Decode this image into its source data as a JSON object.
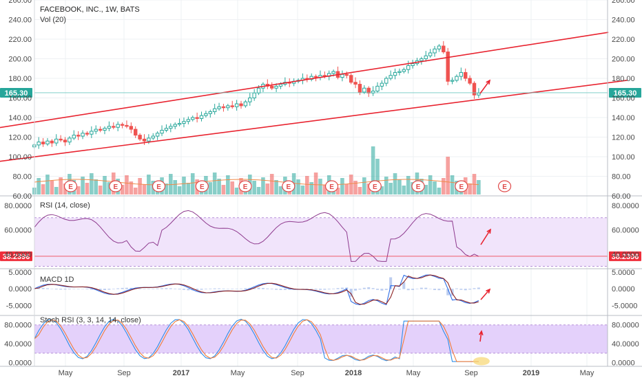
{
  "header": {
    "title": "FACEBOOK, INC., 1W, BATS",
    "volume_label": "Vol (20)"
  },
  "colors": {
    "up": "#26a69a",
    "down": "#ef5350",
    "channel": "#e8232f",
    "rsi_line": "#8e3a8e",
    "rsi_band": "#f1e4fb",
    "stoch_band": "#e4d1fb",
    "macd_line": "#2f6ee6",
    "signal_line": "#8a1d1d",
    "k_line": "#2f8ee6",
    "d_line": "#f07c3a",
    "badge_green": "#26a69a",
    "badge_red": "#ef2d3a",
    "earnings": "#e04a4a",
    "grid": "#eef0f3"
  },
  "earnings_marker": "E",
  "chart_data": [
    {
      "type": "candlestick",
      "title": "FACEBOOK, INC., 1W, BATS",
      "ylim": [
        60,
        260
      ],
      "y_ticks": [
        "260.00",
        "240.00",
        "220.00",
        "200.00",
        "180.00",
        "160.00",
        "140.00",
        "120.00",
        "100.00",
        "80.00",
        "60.00"
      ],
      "x_ticks": [
        "May",
        "Sep",
        "2017",
        "May",
        "Sep",
        "2018",
        "May",
        "Sep",
        "2019",
        "May"
      ],
      "last_price_label": "165.30",
      "last_price": 165.3,
      "series_close": [
        112,
        115,
        113,
        116,
        114,
        118,
        117,
        115,
        119,
        122,
        121,
        124,
        123,
        126,
        128,
        127,
        129,
        131,
        130,
        133,
        132,
        131,
        128,
        122,
        118,
        116,
        119,
        121,
        124,
        127,
        129,
        131,
        133,
        134,
        136,
        138,
        140,
        139,
        142,
        144,
        146,
        149,
        151,
        150,
        152,
        151,
        154,
        152,
        156,
        160,
        165,
        170,
        174,
        172,
        170,
        172,
        174,
        176,
        175,
        177,
        178,
        180,
        179,
        182,
        181,
        183,
        182,
        185,
        187,
        181,
        184,
        183,
        176,
        174,
        166,
        170,
        165,
        167,
        172,
        175,
        180,
        183,
        186,
        187,
        189,
        193,
        195,
        198,
        200,
        203,
        206,
        210,
        213,
        207,
        177,
        178,
        182,
        186,
        180,
        175,
        163,
        165
      ],
      "channel_upper": {
        "start": [
          2015.85,
          127
        ],
        "end": [
          2019.47,
          227
        ]
      },
      "channel_lower": {
        "start": [
          2015.85,
          93
        ],
        "end": [
          2019.58,
          178
        ]
      },
      "volume": {
        "label": "Vol (20)"
      }
    },
    {
      "type": "line",
      "name": "RSI (14, close)",
      "ylim": [
        28,
        88
      ],
      "y_ticks": [
        "80.0000",
        "60.0000",
        "40.0000"
      ],
      "current_value_label": "38.2396",
      "current_value": 38.2396,
      "band": [
        30,
        70
      ]
    },
    {
      "type": "line",
      "name": "MACD 1D",
      "ylim": [
        -8,
        6
      ],
      "y_ticks": [
        "5.0000",
        "0.0000",
        "-5.0000"
      ]
    },
    {
      "type": "line",
      "name": "Stoch RSI (3, 3, 14, 14, close)",
      "ylim": [
        -8,
        100
      ],
      "y_ticks": [
        "80.0000",
        "40.0000",
        "0.0000"
      ],
      "band": [
        20,
        80
      ]
    }
  ]
}
